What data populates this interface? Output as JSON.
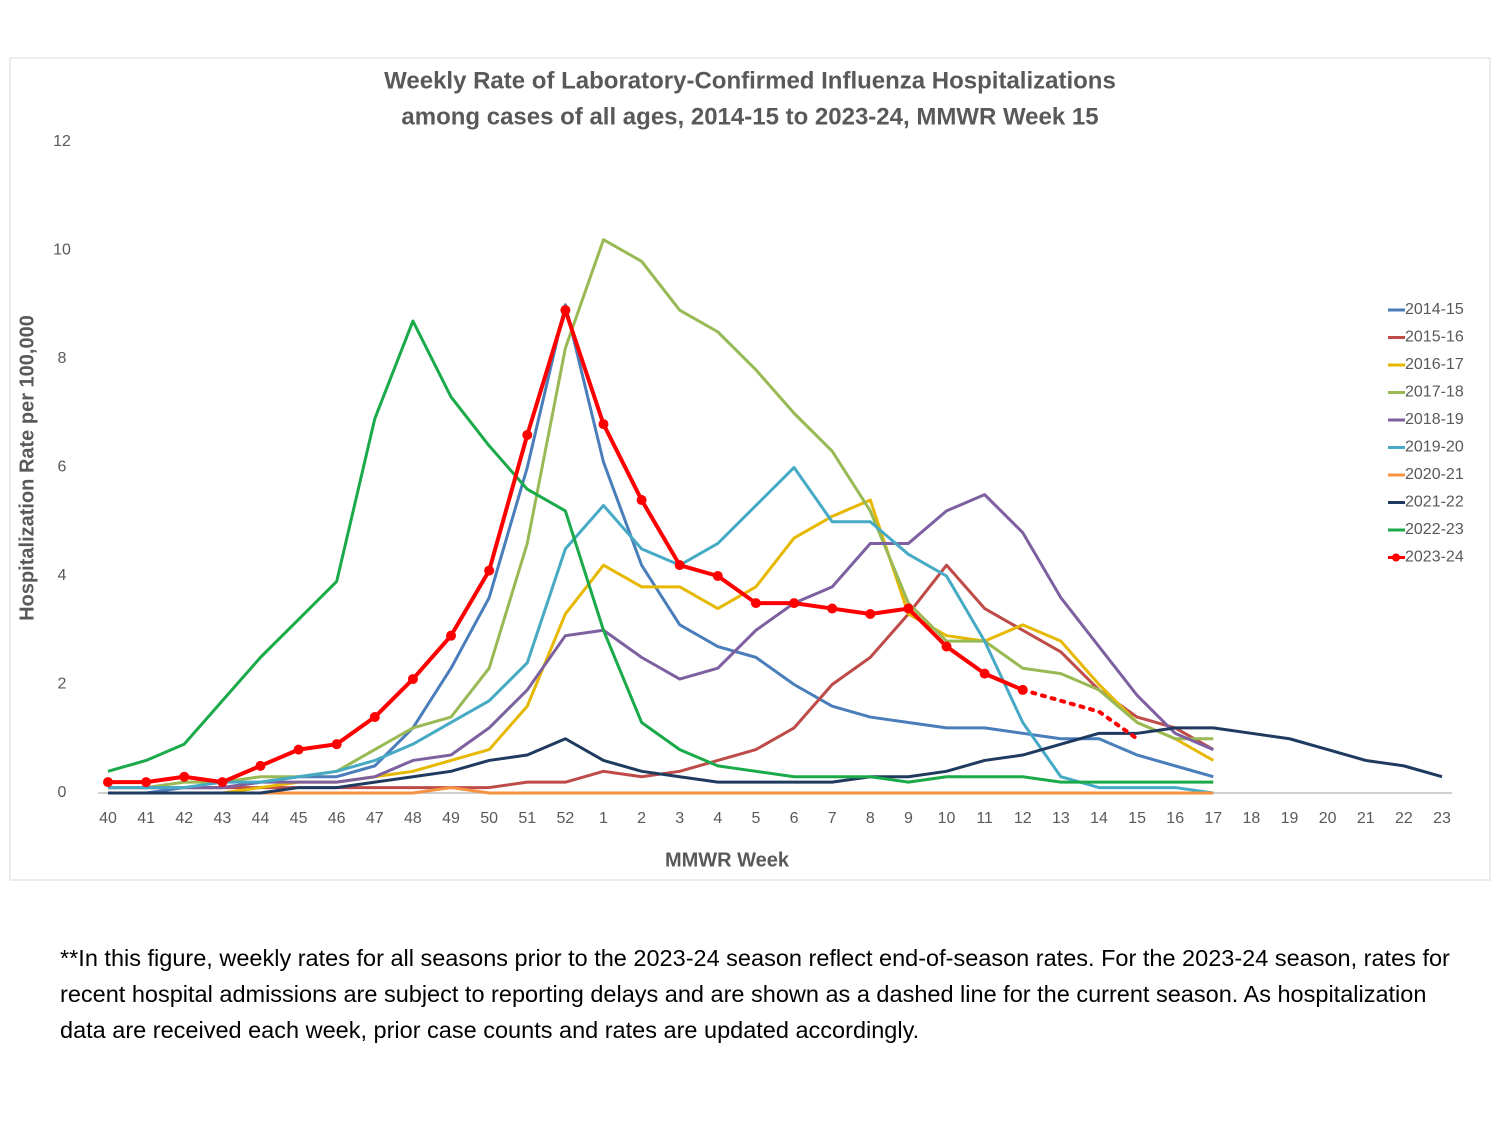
{
  "chart_data": {
    "type": "line",
    "title": [
      "Weekly Rate of Laboratory-Confirmed Influenza Hospitalizations",
      "among cases of all ages, 2014-15 to 2023-24, MMWR Week 15"
    ],
    "x_label": "MMWR Week",
    "y_label": "Hospitalization Rate per 100,000",
    "categories": [
      "40",
      "41",
      "42",
      "43",
      "44",
      "45",
      "46",
      "47",
      "48",
      "49",
      "50",
      "51",
      "52",
      "1",
      "2",
      "3",
      "4",
      "5",
      "6",
      "7",
      "8",
      "9",
      "10",
      "11",
      "12",
      "13",
      "14",
      "15",
      "16",
      "17",
      "18",
      "19",
      "20",
      "21",
      "22",
      "23"
    ],
    "ylim": [
      0,
      12
    ],
    "yticks": [
      0,
      2,
      4,
      6,
      8,
      10,
      12
    ],
    "legend": "right",
    "grid": false,
    "series": [
      {
        "name": "2014-15",
        "color": "#4a7ebb",
        "values": [
          0,
          0,
          0.1,
          0.1,
          0.2,
          0.3,
          0.3,
          0.5,
          1.2,
          2.3,
          3.6,
          6.0,
          9.0,
          6.1,
          4.2,
          3.1,
          2.7,
          2.5,
          2.0,
          1.6,
          1.4,
          1.3,
          1.2,
          1.2,
          1.1,
          1.0,
          1.0,
          0.7,
          0.5,
          0.3,
          null,
          null,
          null,
          null,
          null,
          null
        ]
      },
      {
        "name": "2015-16",
        "color": "#be4b48",
        "values": [
          0.1,
          0.1,
          0.1,
          0.1,
          0.1,
          0.1,
          0.1,
          0.1,
          0.1,
          0.1,
          0.1,
          0.2,
          0.2,
          0.4,
          0.3,
          0.4,
          0.6,
          0.8,
          1.2,
          2.0,
          2.5,
          3.3,
          4.2,
          3.4,
          3.0,
          2.6,
          1.9,
          1.4,
          1.2,
          0.8,
          null,
          null,
          null,
          null,
          null,
          null
        ]
      },
      {
        "name": "2016-17",
        "color": "#e6b800",
        "values": [
          0,
          0,
          0,
          0,
          0.1,
          0.2,
          0.2,
          0.3,
          0.4,
          0.6,
          0.8,
          1.6,
          3.3,
          4.2,
          3.8,
          3.8,
          3.4,
          3.8,
          4.7,
          5.1,
          5.4,
          3.3,
          2.9,
          2.8,
          3.1,
          2.8,
          2.0,
          1.3,
          1.0,
          0.6,
          null,
          null,
          null,
          null,
          null,
          null
        ]
      },
      {
        "name": "2017-18",
        "color": "#98b954",
        "values": [
          0.1,
          0.1,
          0.2,
          0.2,
          0.3,
          0.3,
          0.4,
          0.8,
          1.2,
          1.4,
          2.3,
          4.6,
          8.2,
          10.2,
          9.8,
          8.9,
          8.5,
          7.8,
          7.0,
          6.3,
          5.2,
          3.5,
          2.8,
          2.8,
          2.3,
          2.2,
          1.9,
          1.3,
          1.0,
          1.0,
          null,
          null,
          null,
          null,
          null,
          null
        ]
      },
      {
        "name": "2018-19",
        "color": "#7d60a0",
        "values": [
          0.1,
          0.1,
          0.1,
          0.1,
          0.2,
          0.2,
          0.2,
          0.3,
          0.6,
          0.7,
          1.2,
          1.9,
          2.9,
          3.0,
          2.5,
          2.1,
          2.3,
          3.0,
          3.5,
          3.8,
          4.6,
          4.6,
          5.2,
          5.5,
          4.8,
          3.6,
          2.7,
          1.8,
          1.1,
          0.8,
          null,
          null,
          null,
          null,
          null,
          null
        ]
      },
      {
        "name": "2019-20",
        "color": "#46aac5",
        "values": [
          0.1,
          0.1,
          0.1,
          0.2,
          0.2,
          0.3,
          0.4,
          0.6,
          0.9,
          1.3,
          1.7,
          2.4,
          4.5,
          5.3,
          4.5,
          4.2,
          4.6,
          5.3,
          6.0,
          5.0,
          5.0,
          4.4,
          4.0,
          2.8,
          1.3,
          0.3,
          0.1,
          0.1,
          0.1,
          0,
          null,
          null,
          null,
          null,
          null,
          null
        ]
      },
      {
        "name": "2020-21",
        "color": "#f69240",
        "values": [
          0,
          0,
          0,
          0,
          0,
          0,
          0,
          0,
          0,
          0.1,
          0,
          0,
          0,
          0,
          0,
          0,
          0,
          0,
          0,
          0,
          0,
          0,
          0,
          0,
          0,
          0,
          0,
          0,
          0,
          0,
          null,
          null,
          null,
          null,
          null,
          null
        ]
      },
      {
        "name": "2021-22",
        "color": "#1f3a5f",
        "values": [
          0,
          0,
          0,
          0,
          0,
          0.1,
          0.1,
          0.2,
          0.3,
          0.4,
          0.6,
          0.7,
          1.0,
          0.6,
          0.4,
          0.3,
          0.2,
          0.2,
          0.2,
          0.2,
          0.3,
          0.3,
          0.4,
          0.6,
          0.7,
          0.9,
          1.1,
          1.1,
          1.2,
          1.2,
          1.1,
          1.0,
          0.8,
          0.6,
          0.5,
          0.3
        ]
      },
      {
        "name": "2022-23",
        "color": "#1aaa4a",
        "values": [
          0.4,
          0.6,
          0.9,
          1.7,
          2.5,
          3.2,
          3.9,
          6.9,
          8.7,
          7.3,
          6.4,
          5.6,
          5.2,
          3.0,
          1.3,
          0.8,
          0.5,
          0.4,
          0.3,
          0.3,
          0.3,
          0.2,
          0.3,
          0.3,
          0.3,
          0.2,
          0.2,
          0.2,
          0.2,
          0.2,
          null,
          null,
          null,
          null,
          null,
          null
        ]
      },
      {
        "name": "2023-24",
        "color": "#ff0000",
        "markers": true,
        "dashed_from": "12",
        "values": [
          0.2,
          0.2,
          0.3,
          0.2,
          0.5,
          0.8,
          0.9,
          1.4,
          2.1,
          2.9,
          4.1,
          6.6,
          8.9,
          6.8,
          5.4,
          4.2,
          4.0,
          3.5,
          3.5,
          3.4,
          3.3,
          3.4,
          2.7,
          2.2,
          1.9,
          1.7,
          1.5,
          1.0,
          null,
          null,
          null,
          null,
          null,
          null,
          null,
          null
        ]
      }
    ]
  },
  "footnote": "**In this figure, weekly rates for all seasons prior to the 2023-24 season reflect end-of-season rates. For the 2023-24 season, rates for recent hospital admissions are subject to reporting delays and are shown as a dashed line for the current season. As hospitalization data are received each week, prior case counts and rates are updated accordingly."
}
